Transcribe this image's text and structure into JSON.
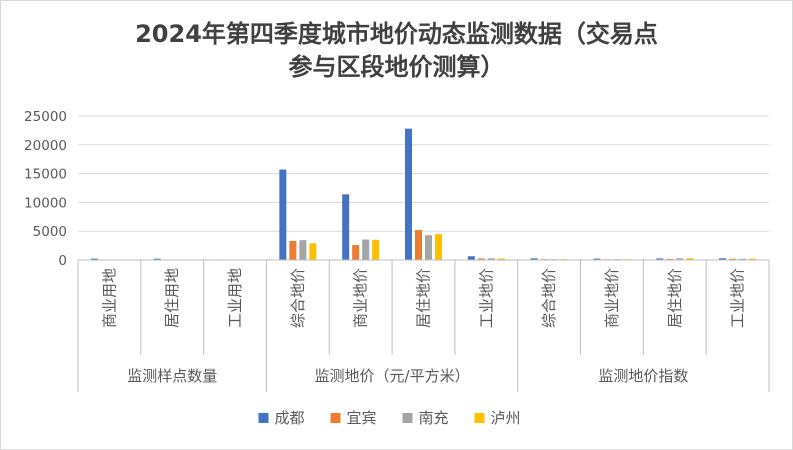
{
  "chart_data": {
    "type": "bar",
    "title_line1": "2024年第四季度城市地价动态监测数据（交易点",
    "title_line2": "参与区段地价测算）",
    "ylim": [
      0,
      25000
    ],
    "yticks": [
      0,
      5000,
      10000,
      15000,
      20000,
      25000
    ],
    "grid": true,
    "legend_position": "bottom",
    "groups": [
      {
        "label": "监测样点数量",
        "categories": [
          "商业用地",
          "居住用地",
          "工业用地"
        ]
      },
      {
        "label": "监测地价（元/平方米）",
        "categories": [
          "综合地价",
          "商业地价",
          "居住地价",
          "工业地价"
        ]
      },
      {
        "label": "监测地价指数",
        "categories": [
          "综合地价",
          "商业地价",
          "居住地价",
          "工业地价"
        ]
      }
    ],
    "series": [
      {
        "name": "成都",
        "color": "#4472c4",
        "values": [
          240,
          220,
          100,
          15700,
          11400,
          22800,
          650,
          290,
          240,
          270,
          300
        ]
      },
      {
        "name": "宜宾",
        "color": "#ed7d31",
        "values": [
          40,
          40,
          30,
          3300,
          2600,
          5200,
          260,
          150,
          130,
          180,
          210
        ]
      },
      {
        "name": "南充",
        "color": "#a5a5a5",
        "values": [
          40,
          40,
          30,
          3450,
          3550,
          4300,
          290,
          140,
          140,
          300,
          200
        ]
      },
      {
        "name": "泸州",
        "color": "#ffc000",
        "values": [
          40,
          40,
          30,
          2900,
          3500,
          4500,
          250,
          140,
          130,
          310,
          230
        ]
      }
    ]
  }
}
